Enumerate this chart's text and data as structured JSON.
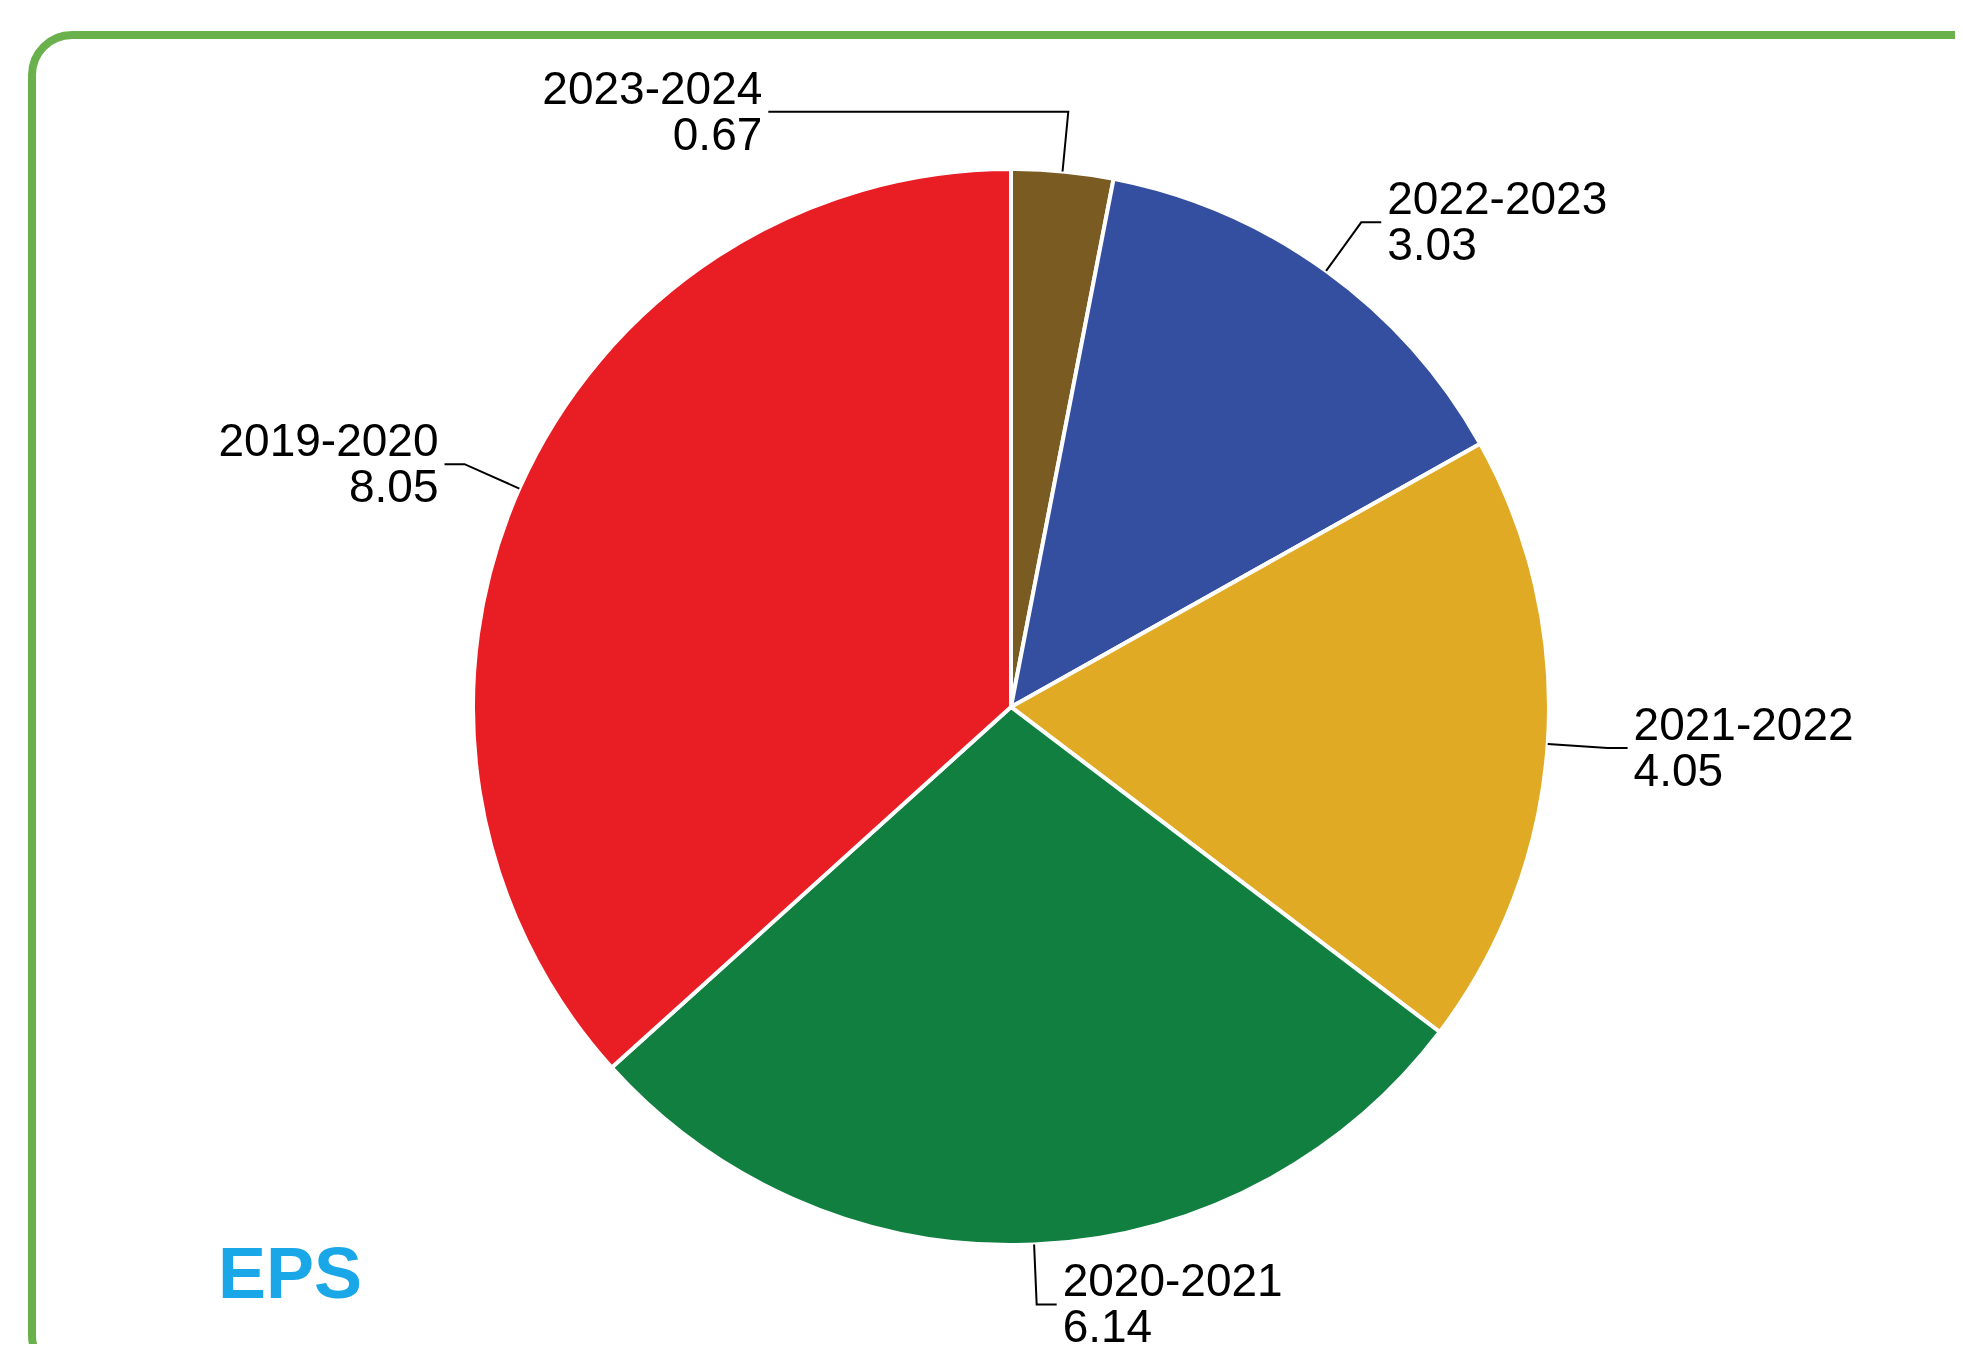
{
  "chart_data": {
    "type": "pie",
    "title": "EPS",
    "categories": [
      "2023-2024",
      "2022-2023",
      "2021-2022",
      "2020-2021",
      "2019-2020"
    ],
    "values": [
      0.67,
      3.03,
      4.05,
      6.14,
      8.05
    ],
    "colors": [
      "#7a5c23",
      "#344ea0",
      "#e0aa24",
      "#107f40",
      "#e91e25"
    ],
    "data_labels": true
  }
}
